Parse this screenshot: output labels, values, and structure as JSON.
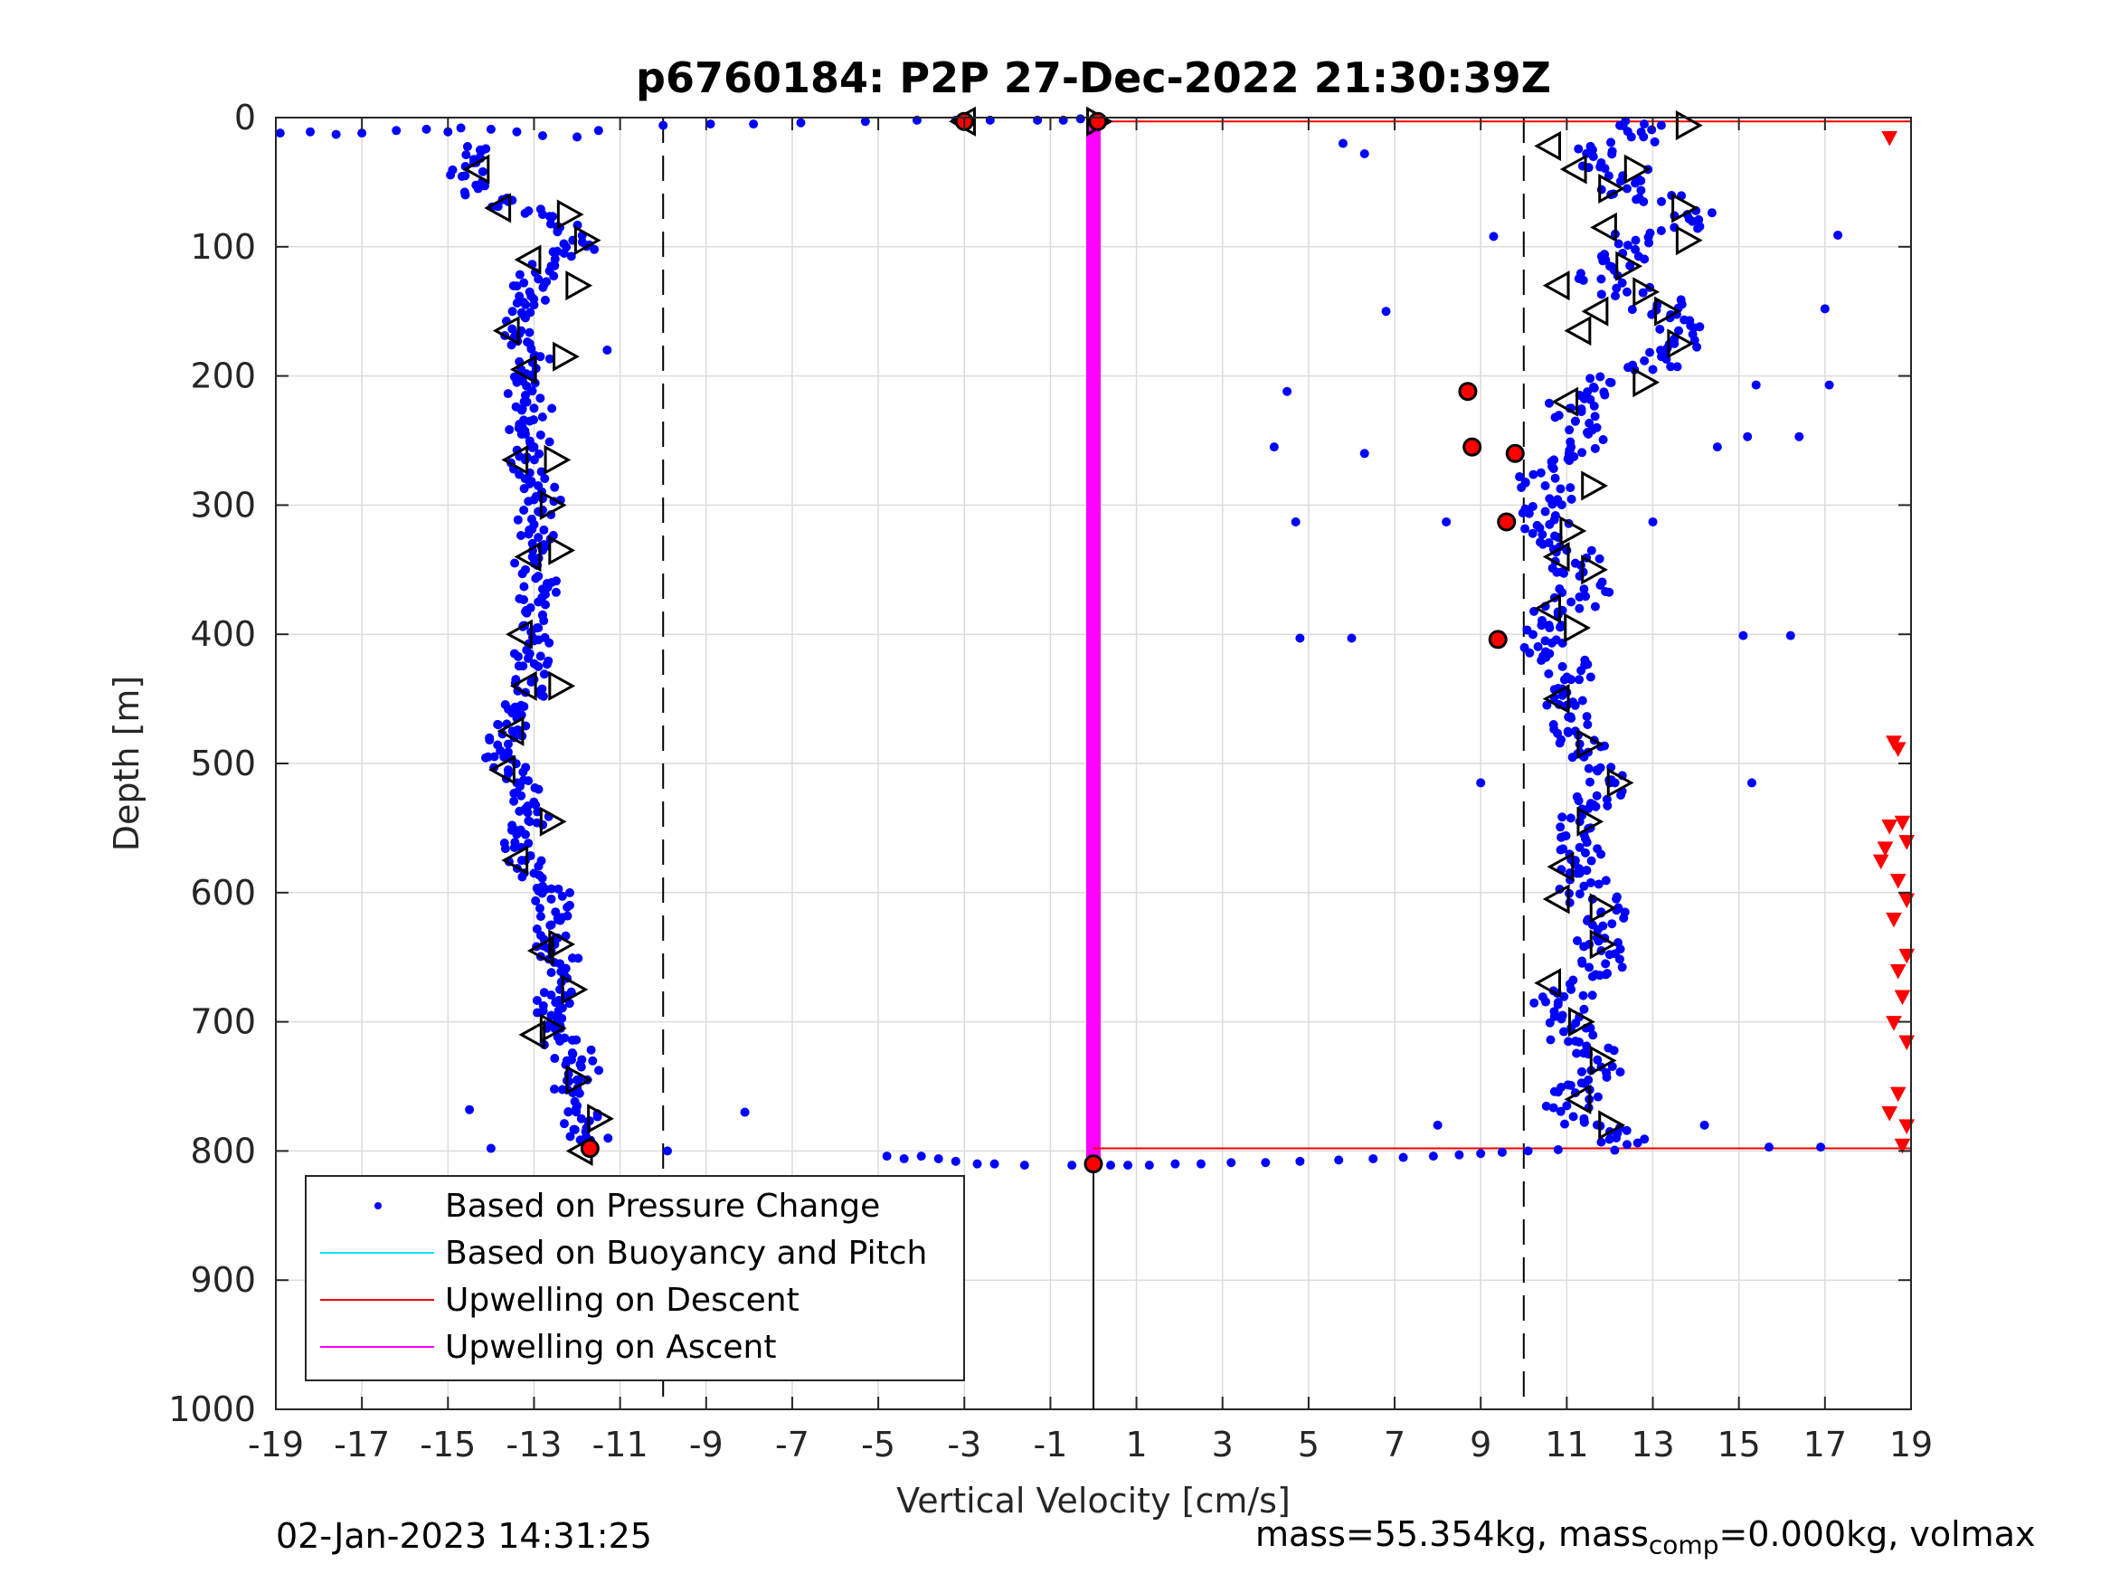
{
  "chart_data": {
    "type": "scatter",
    "title": "p6760184: P2P 27-Dec-2022 21:30:39Z",
    "xlabel": "Vertical Velocity [cm/s]",
    "ylabel": "Depth [m]",
    "xlim": [
      -19,
      19
    ],
    "ylim": [
      0,
      1000
    ],
    "y_reversed": true,
    "grid": true,
    "x_ticks": [
      "-19",
      "-17",
      "-15",
      "-13",
      "-11",
      "-9",
      "-7",
      "-5",
      "-3",
      "-1",
      "1",
      "3",
      "5",
      "7",
      "9",
      "11",
      "13",
      "15",
      "17",
      "19"
    ],
    "y_ticks": [
      "0",
      "100",
      "200",
      "300",
      "400",
      "500",
      "600",
      "700",
      "800",
      "900",
      "1000"
    ],
    "reference_lines": {
      "dashed_x": [
        -10,
        10
      ],
      "solid_x": 0,
      "solid_x_from_depth": 810
    },
    "legend_placement": "bottom-left",
    "legend": [
      {
        "label": "Based on Pressure Change",
        "color": "#0000ff",
        "marker": "dot"
      },
      {
        "label": "Based on Buoyancy and Pitch",
        "color": "#00e5ff",
        "marker": "line"
      },
      {
        "label": "Upwelling on Descent",
        "color": "#ff0000",
        "marker": "line"
      },
      {
        "label": "Upwelling on Ascent",
        "color": "#ff00ff",
        "marker": "line"
      }
    ],
    "upwelling_ascent": {
      "x": 0,
      "depth_range": [
        0,
        810
      ],
      "color": "#ff00ff"
    },
    "upwelling_descent_lines": [
      {
        "x": [
          0,
          19
        ],
        "depth": 3
      },
      {
        "x": [
          0,
          19
        ],
        "depth": 798
      }
    ],
    "descent_profile": [
      [
        -14.2,
        25
      ],
      [
        -14.4,
        35
      ],
      [
        -14.6,
        45
      ],
      [
        -14.3,
        55
      ],
      [
        -13.6,
        65
      ],
      [
        -12.8,
        75
      ],
      [
        -12.4,
        85
      ],
      [
        -12.1,
        95
      ],
      [
        -12.3,
        105
      ],
      [
        -12.6,
        115
      ],
      [
        -12.9,
        125
      ],
      [
        -13.1,
        135
      ],
      [
        -13.0,
        145
      ],
      [
        -13.2,
        155
      ],
      [
        -13.3,
        165
      ],
      [
        -13.1,
        175
      ],
      [
        -13.0,
        185
      ],
      [
        -13.3,
        195
      ],
      [
        -13.4,
        205
      ],
      [
        -13.2,
        215
      ],
      [
        -13.0,
        225
      ],
      [
        -13.1,
        235
      ],
      [
        -13.2,
        245
      ],
      [
        -13.0,
        255
      ],
      [
        -13.2,
        265
      ],
      [
        -13.1,
        275
      ],
      [
        -12.9,
        285
      ],
      [
        -12.8,
        295
      ],
      [
        -12.9,
        305
      ],
      [
        -13.0,
        315
      ],
      [
        -12.9,
        325
      ],
      [
        -12.8,
        335
      ],
      [
        -13.0,
        345
      ],
      [
        -12.9,
        355
      ],
      [
        -12.8,
        365
      ],
      [
        -12.9,
        375
      ],
      [
        -12.8,
        385
      ],
      [
        -12.9,
        395
      ],
      [
        -13.0,
        405
      ],
      [
        -13.1,
        415
      ],
      [
        -12.9,
        425
      ],
      [
        -13.0,
        435
      ],
      [
        -13.2,
        445
      ],
      [
        -13.3,
        455
      ],
      [
        -13.4,
        465
      ],
      [
        -13.5,
        475
      ],
      [
        -13.6,
        485
      ],
      [
        -13.7,
        495
      ],
      [
        -13.6,
        505
      ],
      [
        -13.4,
        515
      ],
      [
        -13.3,
        525
      ],
      [
        -13.2,
        535
      ],
      [
        -13.1,
        545
      ],
      [
        -13.2,
        555
      ],
      [
        -13.3,
        565
      ],
      [
        -13.2,
        575
      ],
      [
        -13.0,
        585
      ],
      [
        -12.8,
        595
      ],
      [
        -12.6,
        605
      ],
      [
        -12.5,
        615
      ],
      [
        -12.6,
        625
      ],
      [
        -12.5,
        635
      ],
      [
        -12.6,
        645
      ],
      [
        -12.4,
        655
      ],
      [
        -12.3,
        665
      ],
      [
        -12.4,
        675
      ],
      [
        -12.5,
        685
      ],
      [
        -12.6,
        695
      ],
      [
        -12.7,
        705
      ],
      [
        -12.4,
        715
      ],
      [
        -12.1,
        725
      ],
      [
        -11.9,
        735
      ],
      [
        -12.0,
        745
      ],
      [
        -12.1,
        755
      ],
      [
        -12.0,
        765
      ],
      [
        -11.9,
        775
      ],
      [
        -11.8,
        785
      ],
      [
        -11.7,
        795
      ]
    ],
    "ascent_profile": [
      [
        12.8,
        5
      ],
      [
        12.5,
        15
      ],
      [
        11.6,
        25
      ],
      [
        11.8,
        35
      ],
      [
        12.3,
        45
      ],
      [
        12.4,
        55
      ],
      [
        13.2,
        65
      ],
      [
        13.8,
        75
      ],
      [
        13.5,
        85
      ],
      [
        12.6,
        95
      ],
      [
        12.3,
        105
      ],
      [
        12.0,
        115
      ],
      [
        11.8,
        125
      ],
      [
        12.4,
        135
      ],
      [
        13.1,
        145
      ],
      [
        13.4,
        155
      ],
      [
        13.6,
        165
      ],
      [
        13.5,
        175
      ],
      [
        13.2,
        185
      ],
      [
        13.0,
        195
      ],
      [
        12.0,
        205
      ],
      [
        11.3,
        215
      ],
      [
        11.1,
        225
      ],
      [
        11.2,
        235
      ],
      [
        11.5,
        245
      ],
      [
        11.1,
        255
      ],
      [
        10.7,
        265
      ],
      [
        10.4,
        275
      ],
      [
        10.5,
        285
      ],
      [
        10.6,
        295
      ],
      [
        10.5,
        305
      ],
      [
        10.6,
        315
      ],
      [
        10.8,
        325
      ],
      [
        11.0,
        335
      ],
      [
        11.2,
        345
      ],
      [
        11.3,
        355
      ],
      [
        11.4,
        365
      ],
      [
        11.1,
        375
      ],
      [
        10.8,
        385
      ],
      [
        10.6,
        395
      ],
      [
        10.5,
        405
      ],
      [
        10.6,
        415
      ],
      [
        10.9,
        425
      ],
      [
        11.1,
        435
      ],
      [
        11.0,
        445
      ],
      [
        11.0,
        455
      ],
      [
        11.1,
        465
      ],
      [
        11.2,
        475
      ],
      [
        11.3,
        485
      ],
      [
        11.4,
        495
      ],
      [
        11.7,
        505
      ],
      [
        12.0,
        515
      ],
      [
        11.7,
        525
      ],
      [
        11.5,
        535
      ],
      [
        11.3,
        545
      ],
      [
        11.4,
        555
      ],
      [
        11.3,
        565
      ],
      [
        11.2,
        575
      ],
      [
        11.3,
        585
      ],
      [
        11.4,
        595
      ],
      [
        11.6,
        605
      ],
      [
        11.8,
        615
      ],
      [
        11.6,
        625
      ],
      [
        11.7,
        635
      ],
      [
        11.8,
        645
      ],
      [
        11.9,
        655
      ],
      [
        11.6,
        665
      ],
      [
        11.1,
        675
      ],
      [
        10.8,
        685
      ],
      [
        10.9,
        695
      ],
      [
        11.1,
        705
      ],
      [
        11.2,
        715
      ],
      [
        11.5,
        725
      ],
      [
        11.8,
        735
      ],
      [
        11.5,
        745
      ],
      [
        11.2,
        755
      ],
      [
        11.0,
        765
      ],
      [
        11.4,
        775
      ],
      [
        12.0,
        785
      ],
      [
        12.4,
        795
      ]
    ],
    "surface_points": [
      [
        -18.9,
        12
      ],
      [
        -18.2,
        11
      ],
      [
        -17.6,
        13
      ],
      [
        -17.0,
        12
      ],
      [
        -16.2,
        10
      ],
      [
        -15.5,
        9
      ],
      [
        -15.0,
        11
      ],
      [
        -14.7,
        8
      ],
      [
        -14.0,
        9
      ],
      [
        -13.4,
        11
      ],
      [
        -12.8,
        14
      ],
      [
        -12.0,
        15
      ],
      [
        -11.5,
        10
      ],
      [
        -10.0,
        6
      ],
      [
        -8.9,
        5
      ],
      [
        -7.9,
        5
      ],
      [
        -6.8,
        4
      ],
      [
        -5.3,
        3
      ],
      [
        -4.1,
        2
      ],
      [
        -3.2,
        2
      ],
      [
        -2.4,
        2
      ],
      [
        -1.3,
        2
      ],
      [
        -0.7,
        2
      ],
      [
        -0.3,
        1
      ],
      [
        0.0,
        1
      ]
    ],
    "bottom_points": [
      [
        -4.8,
        804
      ],
      [
        -4.4,
        806
      ],
      [
        -4.0,
        804
      ],
      [
        -3.6,
        806
      ],
      [
        -3.2,
        808
      ],
      [
        -2.7,
        810
      ],
      [
        -2.3,
        810
      ],
      [
        -1.6,
        811
      ],
      [
        -0.5,
        811
      ],
      [
        0.0,
        812
      ],
      [
        0.4,
        811
      ],
      [
        0.8,
        811
      ],
      [
        1.3,
        811
      ],
      [
        1.9,
        810
      ],
      [
        2.5,
        810
      ],
      [
        3.2,
        809
      ],
      [
        4.0,
        809
      ],
      [
        4.8,
        808
      ],
      [
        5.7,
        807
      ],
      [
        6.5,
        806
      ],
      [
        7.2,
        805
      ],
      [
        7.9,
        804
      ],
      [
        8.5,
        803
      ],
      [
        9.0,
        802
      ],
      [
        9.5,
        801
      ],
      [
        10.1,
        800
      ],
      [
        10.8,
        799
      ]
    ],
    "outlier_points": [
      [
        -14.5,
        768
      ],
      [
        -14.0,
        798
      ],
      [
        -9.9,
        800
      ],
      [
        -8.1,
        770
      ],
      [
        -11.3,
        180
      ],
      [
        -11.6,
        102
      ],
      [
        5.8,
        20
      ],
      [
        6.3,
        28
      ],
      [
        6.8,
        150
      ],
      [
        4.5,
        212
      ],
      [
        4.2,
        255
      ],
      [
        6.3,
        260
      ],
      [
        4.7,
        313
      ],
      [
        4.8,
        403
      ],
      [
        6.0,
        403
      ],
      [
        8.0,
        780
      ],
      [
        8.2,
        313
      ],
      [
        9.0,
        515
      ],
      [
        9.3,
        92
      ],
      [
        13.0,
        313
      ],
      [
        14.2,
        780
      ],
      [
        15.1,
        401
      ],
      [
        15.3,
        515
      ],
      [
        15.4,
        207
      ],
      [
        15.7,
        797
      ],
      [
        16.2,
        401
      ],
      [
        16.4,
        247
      ],
      [
        16.9,
        797
      ],
      [
        17.0,
        148
      ],
      [
        17.1,
        207
      ],
      [
        17.3,
        91
      ],
      [
        14.5,
        255
      ],
      [
        15.2,
        247
      ]
    ],
    "triangles_left": [
      [
        -3.0,
        3
      ],
      [
        -14.3,
        40
      ],
      [
        -13.8,
        70
      ],
      [
        -13.1,
        110
      ],
      [
        -13.6,
        165
      ],
      [
        -13.2,
        195
      ],
      [
        -13.4,
        265
      ],
      [
        -13.1,
        340
      ],
      [
        -13.3,
        400
      ],
      [
        -13.2,
        440
      ],
      [
        -13.5,
        475
      ],
      [
        -13.7,
        505
      ],
      [
        -13.4,
        575
      ],
      [
        -12.8,
        645
      ],
      [
        -13.0,
        710
      ],
      [
        -11.9,
        800
      ],
      [
        10.6,
        22
      ],
      [
        11.2,
        40
      ],
      [
        11.9,
        85
      ],
      [
        10.8,
        130
      ],
      [
        11.0,
        220
      ],
      [
        10.8,
        340
      ],
      [
        10.6,
        380
      ],
      [
        10.8,
        450
      ],
      [
        10.9,
        580
      ],
      [
        10.8,
        605
      ],
      [
        10.6,
        670
      ],
      [
        11.3,
        760
      ],
      [
        11.7,
        150
      ],
      [
        11.3,
        165
      ]
    ],
    "triangles_right": [
      [
        0.1,
        3
      ],
      [
        13.8,
        6
      ],
      [
        12.6,
        40
      ],
      [
        12.0,
        55
      ],
      [
        13.7,
        70
      ],
      [
        13.8,
        95
      ],
      [
        12.4,
        115
      ],
      [
        12.8,
        135
      ],
      [
        13.3,
        150
      ],
      [
        13.6,
        175
      ],
      [
        12.8,
        205
      ],
      [
        11.6,
        285
      ],
      [
        11.1,
        320
      ],
      [
        11.6,
        350
      ],
      [
        11.2,
        395
      ],
      [
        11.5,
        485
      ],
      [
        12.2,
        515
      ],
      [
        11.5,
        545
      ],
      [
        11.8,
        612
      ],
      [
        11.8,
        640
      ],
      [
        11.3,
        700
      ],
      [
        11.8,
        730
      ],
      [
        12.0,
        780
      ],
      [
        -12.2,
        75
      ],
      [
        -11.8,
        95
      ],
      [
        -12.0,
        130
      ],
      [
        -12.3,
        185
      ],
      [
        -12.5,
        265
      ],
      [
        -12.6,
        300
      ],
      [
        -12.4,
        335
      ],
      [
        -12.4,
        440
      ],
      [
        -12.6,
        545
      ],
      [
        -12.4,
        640
      ],
      [
        -12.1,
        675
      ],
      [
        -12.0,
        745
      ],
      [
        -11.5,
        775
      ],
      [
        -12.6,
        705
      ]
    ],
    "red_markers": [
      [
        -3.0,
        3
      ],
      [
        0.1,
        3
      ],
      [
        8.7,
        212
      ],
      [
        8.8,
        255
      ],
      [
        9.8,
        260
      ],
      [
        9.6,
        313
      ],
      [
        9.4,
        404
      ],
      [
        -11.7,
        798
      ],
      [
        0.0,
        810
      ]
    ],
    "red_down_triangles": [
      [
        18.5,
        15
      ],
      [
        18.6,
        483
      ],
      [
        18.7,
        488
      ],
      [
        18.5,
        548
      ],
      [
        18.8,
        545
      ],
      [
        18.4,
        565
      ],
      [
        18.9,
        560
      ],
      [
        18.3,
        575
      ],
      [
        18.7,
        590
      ],
      [
        18.9,
        605
      ],
      [
        18.6,
        620
      ],
      [
        18.9,
        648
      ],
      [
        18.7,
        660
      ],
      [
        18.8,
        680
      ],
      [
        18.6,
        700
      ],
      [
        18.9,
        715
      ],
      [
        18.7,
        755
      ],
      [
        18.5,
        770
      ],
      [
        18.9,
        780
      ],
      [
        18.8,
        795
      ]
    ]
  },
  "footer": {
    "timestamp": "02-Jan-2023 14:31:25",
    "mass_prefix": "mass=55.354kg, mass",
    "mass_sub": "comp",
    "mass_suffix": "=0.000kg, volmax"
  }
}
